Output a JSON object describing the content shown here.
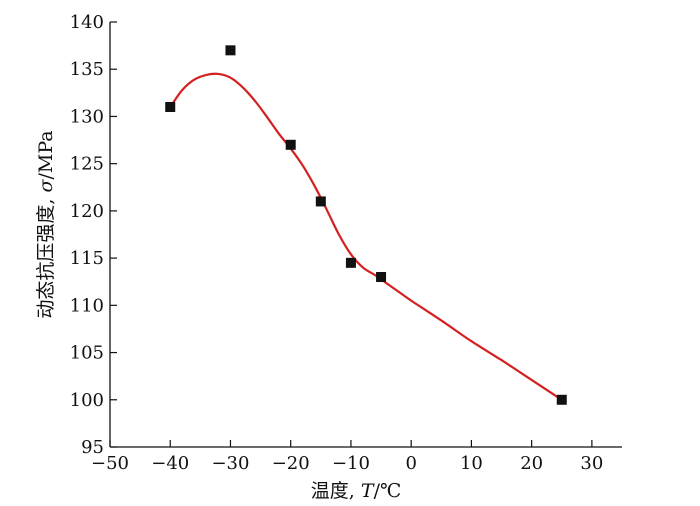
{
  "chart_data": {
    "type": "scatter",
    "title": "",
    "xlabel_prefix": "温度, ",
    "xlabel_var": "T",
    "xlabel_unit": "/℃",
    "ylabel_prefix": "动态抗压强度, ",
    "ylabel_var": "σ",
    "ylabel_unit": "/MPa",
    "xlim": [
      -50,
      35
    ],
    "ylim": [
      95,
      140
    ],
    "x_ticks": [
      -50,
      -40,
      -30,
      -20,
      -10,
      0,
      10,
      20,
      30
    ],
    "x_tick_labels": [
      "−50",
      "−40",
      "−30",
      "−20",
      "−10",
      "0",
      "10",
      "20",
      "30"
    ],
    "y_ticks": [
      95,
      100,
      105,
      110,
      115,
      120,
      125,
      130,
      135,
      140
    ],
    "y_tick_labels": [
      "95",
      "100",
      "105",
      "110",
      "115",
      "120",
      "125",
      "130",
      "135",
      "140"
    ],
    "grid": false,
    "series": [
      {
        "type": "scatter",
        "marker": "square",
        "color": "#111111",
        "x": [
          -40,
          -30,
          -20,
          -15,
          -10,
          -5,
          25
        ],
        "y": [
          131,
          137,
          127,
          121,
          114.5,
          113,
          100
        ]
      },
      {
        "type": "line",
        "color": "#d42020",
        "x": [
          -40,
          -38,
          -36,
          -34,
          -32,
          -30,
          -28,
          -26,
          -24,
          -22,
          -20,
          -18,
          -16,
          -14,
          -12,
          -10,
          -8,
          -6,
          -4,
          -2,
          0,
          5,
          10,
          15,
          20,
          25
        ],
        "y": [
          131,
          132.8,
          133.9,
          134.4,
          134.5,
          134.1,
          133.1,
          131.7,
          130.0,
          128.2,
          126.6,
          124.8,
          122.6,
          120.1,
          117.5,
          115.4,
          114.0,
          113.2,
          112.3,
          111.4,
          110.5,
          108.4,
          106.2,
          104.2,
          102.1,
          100
        ]
      }
    ]
  }
}
